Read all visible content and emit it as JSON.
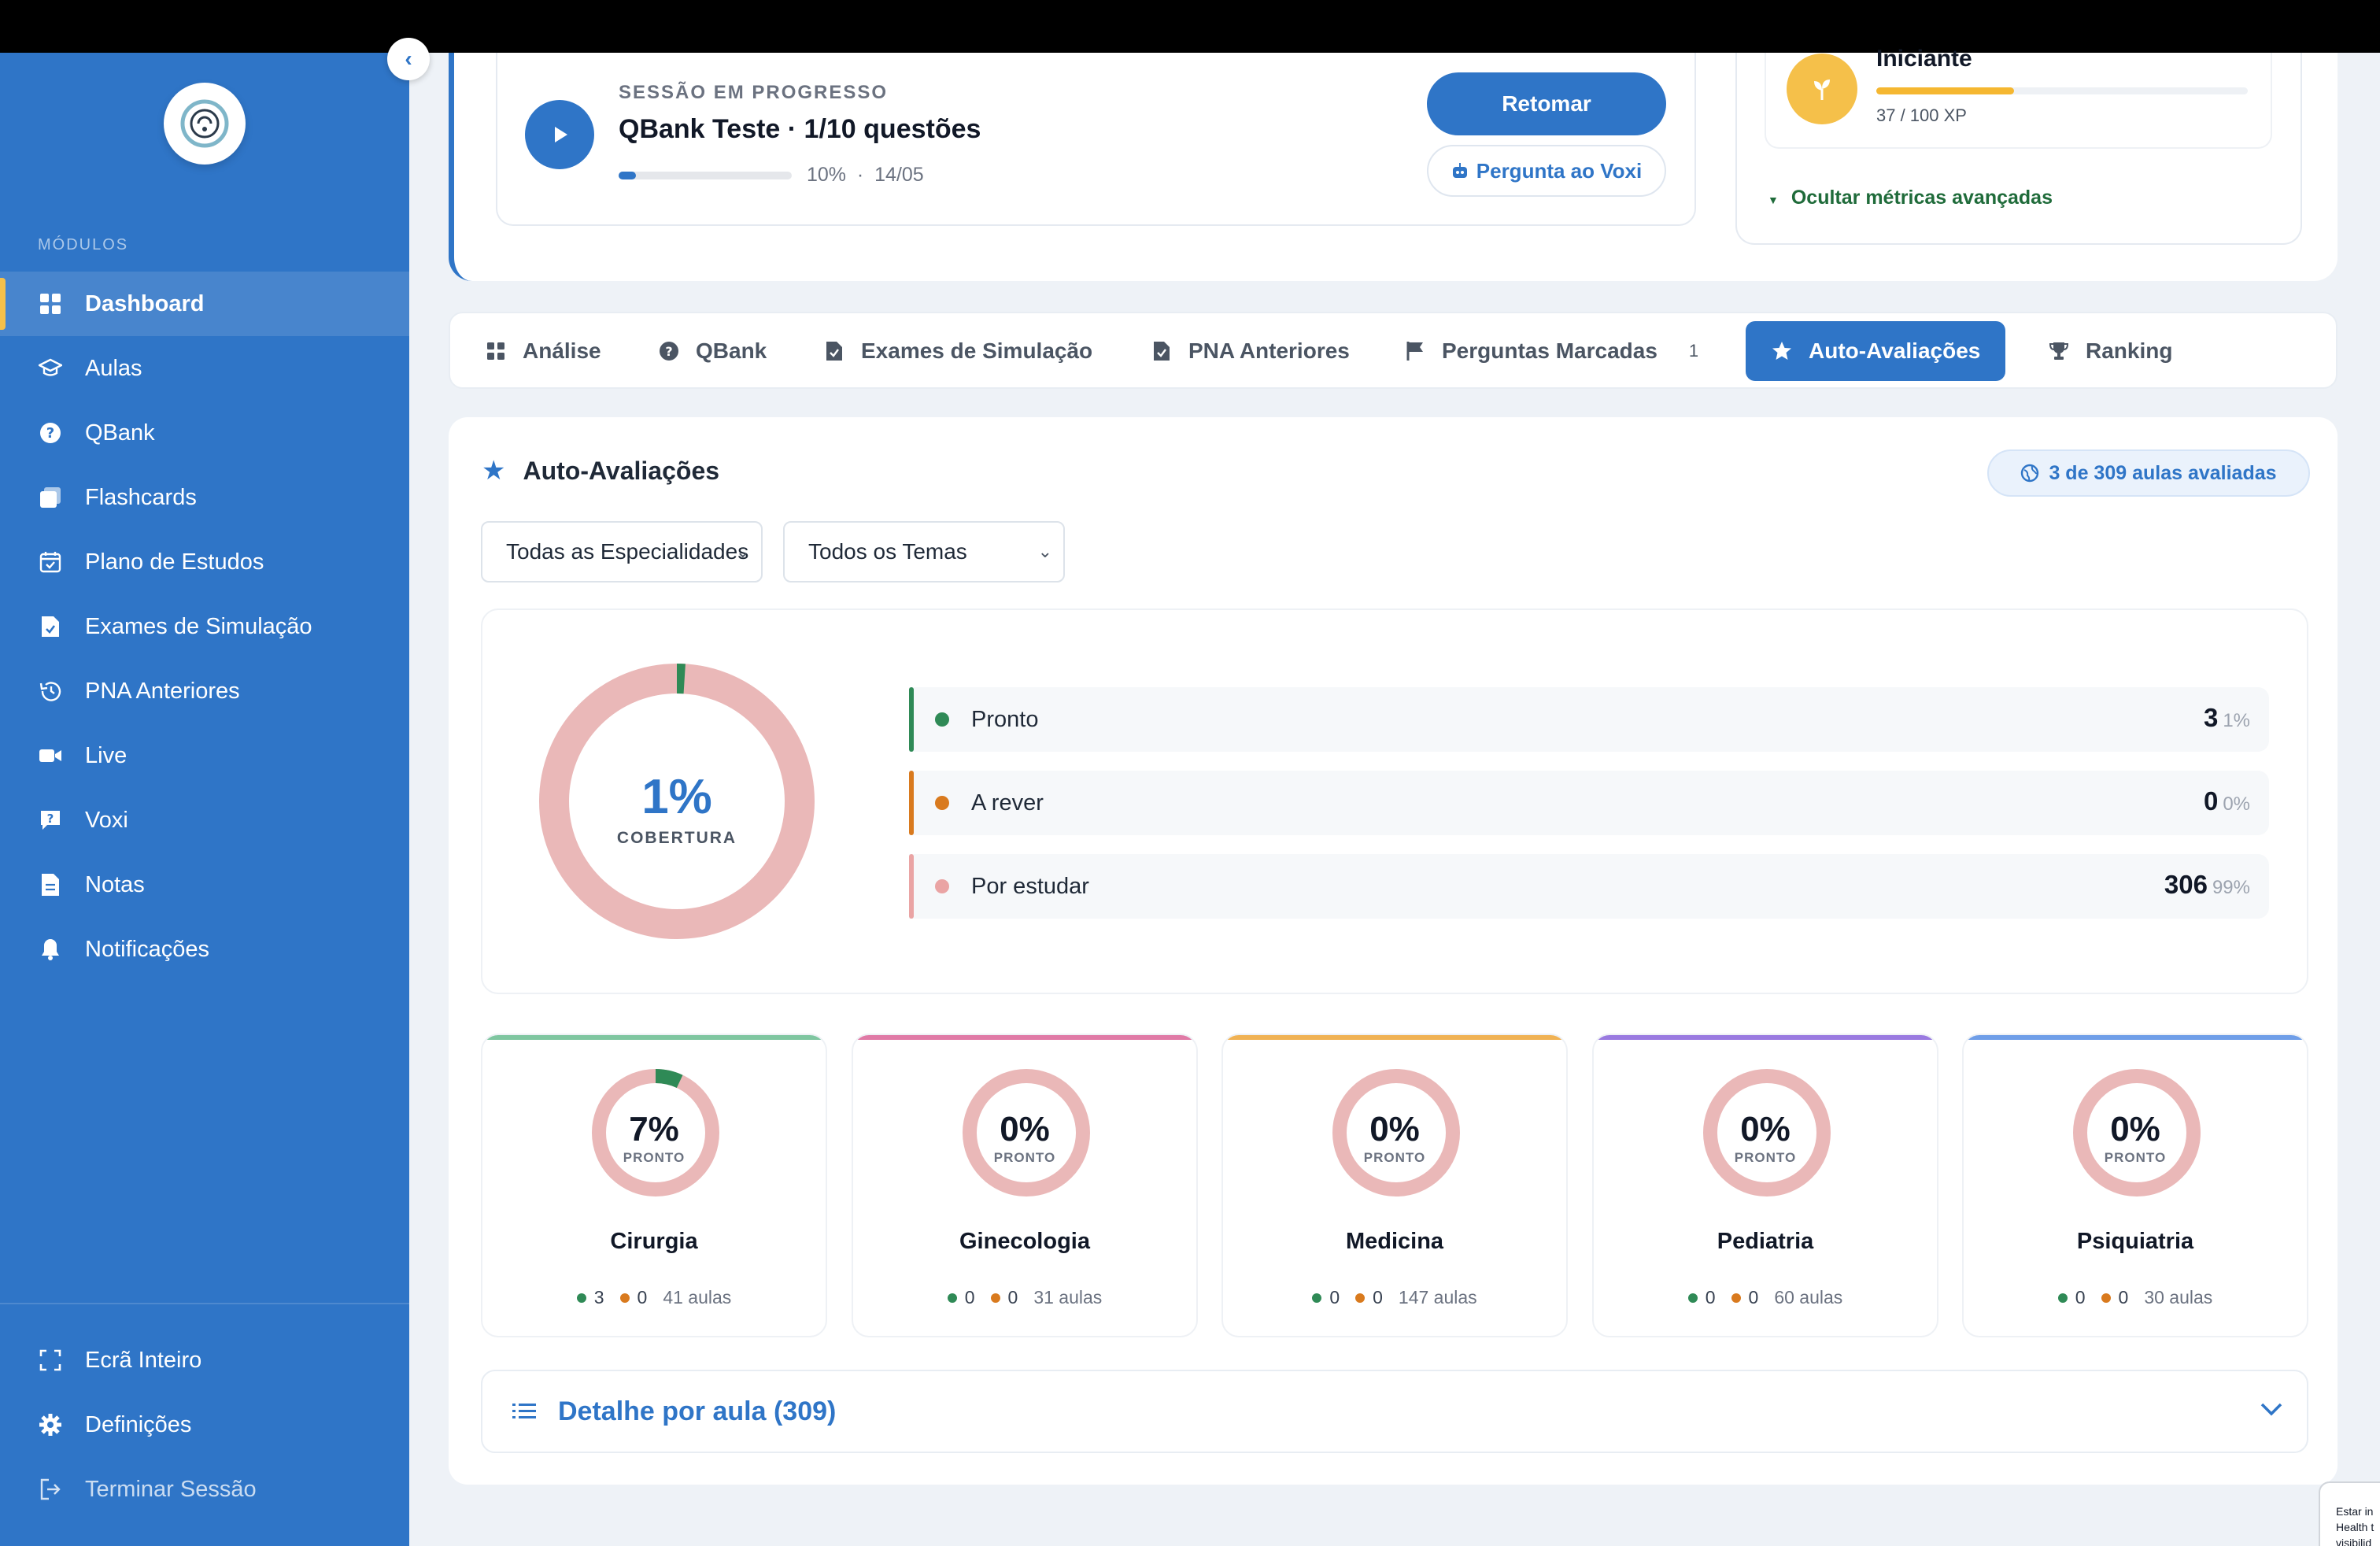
{
  "sidebar": {
    "modules_label": "MÓDULOS",
    "items": [
      {
        "label": "Dashboard",
        "icon": "grid-icon"
      },
      {
        "label": "Aulas",
        "icon": "graduation-cap-icon"
      },
      {
        "label": "QBank",
        "icon": "question-circle-icon"
      },
      {
        "label": "Flashcards",
        "icon": "cards-icon"
      },
      {
        "label": "Plano de Estudos",
        "icon": "calendar-check-icon"
      },
      {
        "label": "Exames de Simulação",
        "icon": "document-check-icon"
      },
      {
        "label": "PNA Anteriores",
        "icon": "history-icon"
      },
      {
        "label": "Live",
        "icon": "video-icon"
      },
      {
        "label": "Voxi",
        "icon": "chat-question-icon"
      },
      {
        "label": "Notas",
        "icon": "note-icon"
      },
      {
        "label": "Notificações",
        "icon": "bell-icon"
      }
    ],
    "bottom": [
      {
        "label": "Ecrã Inteiro",
        "icon": "fullscreen-icon"
      },
      {
        "label": "Definições",
        "icon": "gear-icon"
      },
      {
        "label": "Terminar Sessão",
        "icon": "logout-icon"
      }
    ]
  },
  "session": {
    "label": "SESSÃO EM PROGRESSO",
    "title": "QBank Teste · 1/10 questões",
    "progress": 0.1,
    "meta": "10%  ·  14/05",
    "resume_label": "Retomar",
    "voxi_label": "Pergunta ao Voxi"
  },
  "xp": {
    "level": "Iniciante",
    "progress": 0.37,
    "text": "37 / 100 XP",
    "hide_metrics": "Ocultar métricas avançadas"
  },
  "tabs": [
    {
      "label": "Análise",
      "icon": "grid-icon"
    },
    {
      "label": "QBank",
      "icon": "question-circle-icon"
    },
    {
      "label": "Exames de Simulação",
      "icon": "document-check-icon"
    },
    {
      "label": "PNA Anteriores",
      "icon": "document-check-icon"
    },
    {
      "label": "Perguntas Marcadas",
      "icon": "flag-icon",
      "badge": "1"
    },
    {
      "label": "Auto-Avaliações",
      "icon": "star-icon"
    },
    {
      "label": "Ranking",
      "icon": "trophy-icon"
    }
  ],
  "panel": {
    "title": "Auto-Avaliações",
    "eval_badge": "3 de 309 aulas avaliadas",
    "filter_specialty": "Todas as Especialidades",
    "filter_theme": "Todos os Temas"
  },
  "coverage": {
    "percent": "1%",
    "label": "COBERTURA",
    "ready_fraction": 0.01,
    "stats": [
      {
        "label": "Pronto",
        "value": "3",
        "pct": "1%",
        "color": "#2f8a56"
      },
      {
        "label": "A rever",
        "value": "0",
        "pct": "0%",
        "color": "#d97a1e"
      },
      {
        "label": "Por estudar",
        "value": "306",
        "pct": "99%",
        "color": "#eaa4a4"
      }
    ]
  },
  "specialties": [
    {
      "name": "Cirurgia",
      "pct": "7%",
      "sub": "PRONTO",
      "ready": "3",
      "review": "0",
      "total": "41 aulas",
      "fraction": 0.07,
      "color": "#7fc6a0"
    },
    {
      "name": "Ginecologia",
      "pct": "0%",
      "sub": "PRONTO",
      "ready": "0",
      "review": "0",
      "total": "31 aulas",
      "fraction": 0,
      "color": "#e07aa6"
    },
    {
      "name": "Medicina",
      "pct": "0%",
      "sub": "PRONTO",
      "ready": "0",
      "review": "0",
      "total": "147 aulas",
      "fraction": 0,
      "color": "#f0b254"
    },
    {
      "name": "Pediatria",
      "pct": "0%",
      "sub": "PRONTO",
      "ready": "0",
      "review": "0",
      "total": "60 aulas",
      "fraction": 0,
      "color": "#9a7ae0"
    },
    {
      "name": "Psiquiatria",
      "pct": "0%",
      "sub": "PRONTO",
      "ready": "0",
      "review": "0",
      "total": "30 aulas",
      "fraction": 0,
      "color": "#6f9ee8"
    }
  ],
  "detail": {
    "title": "Detalhe por aula (309)"
  },
  "cookie": {
    "text": "Estar in Health t visibilid"
  },
  "colors": {
    "primary": "#2f75c7",
    "ready": "#2f8a56",
    "review": "#d97a1e",
    "todo": "#eab8b8"
  }
}
